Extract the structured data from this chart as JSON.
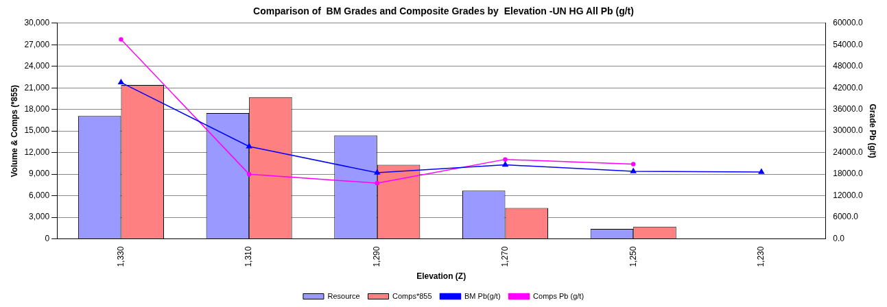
{
  "chart_data": {
    "type": "bar",
    "title": "Comparison of  BM Grades and Composite Grades by  Elevation -UN HG All Pb (g/t)",
    "xlabel": "Elevation (Z)",
    "ylabel": "Volume & Comps (*855)",
    "y2label": "Grade Pb (g/t)",
    "categories": [
      "1,330",
      "1,310",
      "1,290",
      "1,270",
      "1,250",
      "1,230"
    ],
    "series": [
      {
        "name": "Resource",
        "color": "#9999ff",
        "values": [
          17100,
          17500,
          14400,
          6700,
          1400,
          0
        ]
      },
      {
        "name": "Comps*855",
        "color": "#ff8080",
        "values": [
          21400,
          19700,
          10300,
          4300,
          1700,
          null
        ]
      },
      {
        "name": "BM Pb(g/t)",
        "type": "line",
        "axis": "y2",
        "marker": "triangle",
        "color": "#0000ff",
        "values": [
          43500,
          25700,
          18400,
          20600,
          18800,
          18600
        ]
      },
      {
        "name": "Comps Pb (g/t)",
        "type": "line",
        "axis": "y2",
        "marker": "circle",
        "color": "#ff00ff",
        "values": [
          55500,
          18000,
          15500,
          22100,
          20800,
          null
        ]
      }
    ],
    "ylim": [
      0,
      30000
    ],
    "yticks": [
      {
        "value": 0,
        "label": "0"
      },
      {
        "value": 3000,
        "label": "3,000"
      },
      {
        "value": 6000,
        "label": "6,000"
      },
      {
        "value": 9000,
        "label": "9,000"
      },
      {
        "value": 12000,
        "label": "12,000"
      },
      {
        "value": 15000,
        "label": "15,000"
      },
      {
        "value": 18000,
        "label": "18,000"
      },
      {
        "value": 21000,
        "label": "21,000"
      },
      {
        "value": 24000,
        "label": "24,000"
      },
      {
        "value": 27000,
        "label": "27,000"
      },
      {
        "value": 30000,
        "label": "30,000"
      }
    ],
    "y2lim": [
      0,
      60000
    ],
    "y2ticks": [
      {
        "value": 0,
        "label": "0.0"
      },
      {
        "value": 6000,
        "label": "6000.0"
      },
      {
        "value": 12000,
        "label": "12000.0"
      },
      {
        "value": 18000,
        "label": "18000.0"
      },
      {
        "value": 24000,
        "label": "24000.0"
      },
      {
        "value": 30000,
        "label": "30000.0"
      },
      {
        "value": 36000,
        "label": "36000.0"
      },
      {
        "value": 42000,
        "label": "42000.0"
      },
      {
        "value": 48000,
        "label": "48000.0"
      },
      {
        "value": 54000,
        "label": "54000.0"
      },
      {
        "value": 60000,
        "label": "60000.0"
      }
    ],
    "grid": "y",
    "legend": "bottom"
  }
}
